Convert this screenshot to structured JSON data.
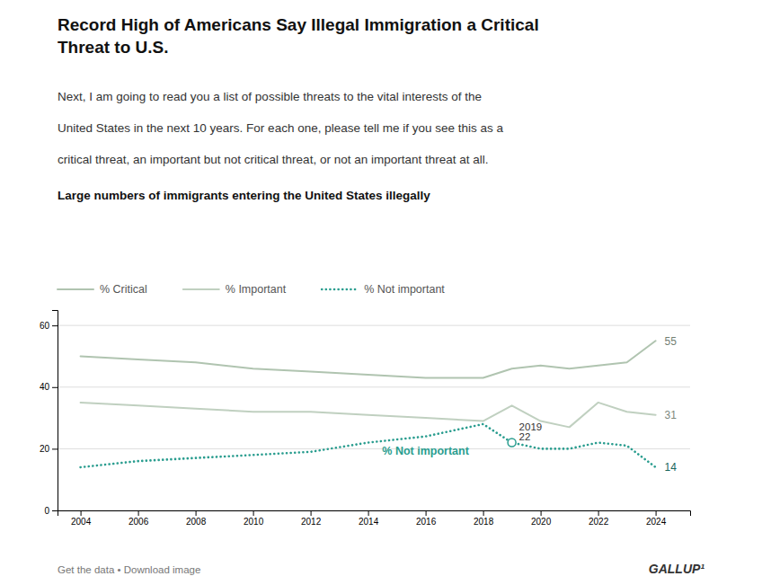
{
  "chart_data": {
    "type": "line",
    "title": "Record High of Americans Say Illegal Immigration a Critical\nThreat to U.S.",
    "subtitle": [
      "Next, I am going to read you a list of possible threats to the vital interests of the",
      "United States in the next 10 years. For each one, please tell me if you see this as a",
      "critical threat, an important but not critical threat, or not an important threat at all."
    ],
    "x": [
      2004,
      2006,
      2008,
      2010,
      2012,
      2014,
      2016,
      2018,
      2019,
      2020,
      2021,
      2022,
      2023,
      2024
    ],
    "series": [
      {
        "name": "% Critical",
        "color": "#b0c4b0",
        "line_style": "solid",
        "values": [
          50,
          49,
          48,
          46,
          45,
          44,
          43,
          43,
          46,
          47,
          46,
          47,
          48,
          55
        ]
      },
      {
        "name": "% Important",
        "color": "#c0d0c0",
        "line_style": "solid",
        "values": [
          35,
          34,
          33,
          32,
          32,
          31,
          30,
          29,
          34,
          29,
          27,
          35,
          32,
          31
        ]
      },
      {
        "name": "% Not important",
        "color": "#2a9d8f",
        "line_style": "dotted",
        "values": [
          14,
          16,
          17,
          18,
          19,
          22,
          24,
          28,
          22,
          20,
          20,
          22,
          21,
          14
        ]
      }
    ],
    "annotations": [
      {
        "text": "Large numbers of immigrants entering the United States illegally"
      },
      {
        "text": "% Not important"
      },
      {
        "x": 2019,
        "y": 22
      },
      {
        "x": 2024,
        "y": 55
      },
      {
        "x": 2024,
        "y": 31
      },
      {
        "x": 2024,
        "y": 14
      },
      {
        "text": "Get the data • Download image"
      },
      {
        "text": "GALLUP¹"
      }
    ],
    "xlim": [
      2003.2,
      2025.2
    ],
    "xticks": [
      2004,
      2006,
      2008,
      2010,
      2012,
      2014,
      2016,
      2018,
      2020,
      2022,
      2024
    ],
    "ylim": [
      0,
      65
    ],
    "yticks": [
      0,
      20,
      40,
      60
    ],
    "grid": true,
    "legend": "top"
  }
}
